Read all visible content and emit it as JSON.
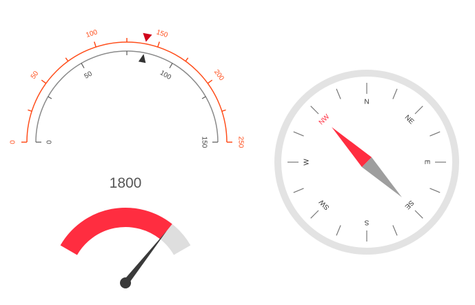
{
  "speed_gauge": {
    "outer_scale": {
      "min": 0,
      "max": 250,
      "labels": [
        "0",
        "50",
        "100",
        "150",
        "200",
        "250"
      ],
      "color": "#ff4d1a"
    },
    "inner_scale": {
      "min": 0,
      "max": 150,
      "labels": [
        "0",
        "50",
        "100",
        "150"
      ],
      "color": "#8a8a8a"
    },
    "outer_marker_value": 140,
    "inner_marker_value": 84,
    "marker_colors": {
      "outer": "#d0021b",
      "inner": "#333333"
    }
  },
  "value_gauge": {
    "value_text": "1800",
    "value_fraction": 0.82,
    "colors": {
      "fill": "#ff2d40",
      "track": "#dedede",
      "needle": "#3a3a3a"
    }
  },
  "compass": {
    "labels": [
      "N",
      "NE",
      "E",
      "SE",
      "S",
      "SW",
      "W",
      "NW"
    ],
    "highlight_label": "NW",
    "heading_deg": 315,
    "colors": {
      "ring": "#e3e3e3",
      "highlight": "#ff2d40",
      "needle_north": "#ff2d40",
      "needle_south": "#9e9e9e",
      "text": "#333333"
    }
  }
}
